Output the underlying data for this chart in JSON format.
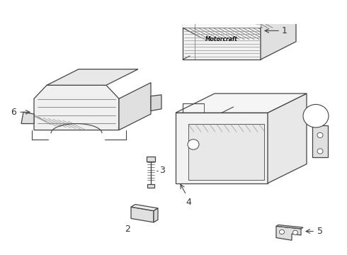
{
  "bg_color": "#ffffff",
  "line_color": "#444444",
  "label_color": "#333333",
  "fig_width": 4.9,
  "fig_height": 3.6,
  "dpi": 100
}
